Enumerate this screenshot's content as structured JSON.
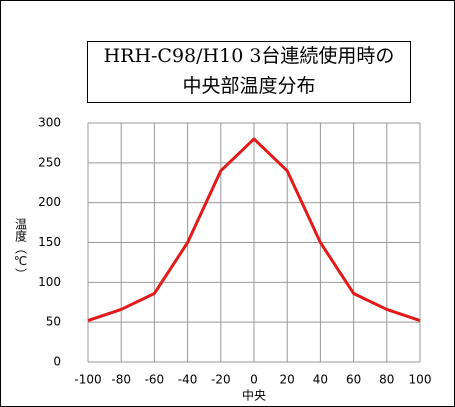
{
  "chart_data": {
    "type": "line",
    "title_lines": [
      "HRH-C98/H10 3台連続使用時の",
      "中央部温度分布"
    ],
    "x_label": "中央",
    "y_label": "温度（℃）",
    "x": [
      -100,
      -80,
      -60,
      -40,
      -20,
      0,
      20,
      40,
      60,
      80,
      100
    ],
    "series": [
      {
        "color": "#e31a1a",
        "values": [
          52,
          66,
          86,
          150,
          240,
          280,
          240,
          150,
          86,
          66,
          52
        ]
      }
    ],
    "xlim": [
      -100,
      100
    ],
    "xticks": [
      -100,
      -80,
      -60,
      -40,
      -20,
      0,
      20,
      40,
      60,
      80,
      100
    ],
    "ylim": [
      0,
      300
    ],
    "yticks": [
      0,
      50,
      100,
      150,
      200,
      250,
      300
    ],
    "grid": true
  }
}
